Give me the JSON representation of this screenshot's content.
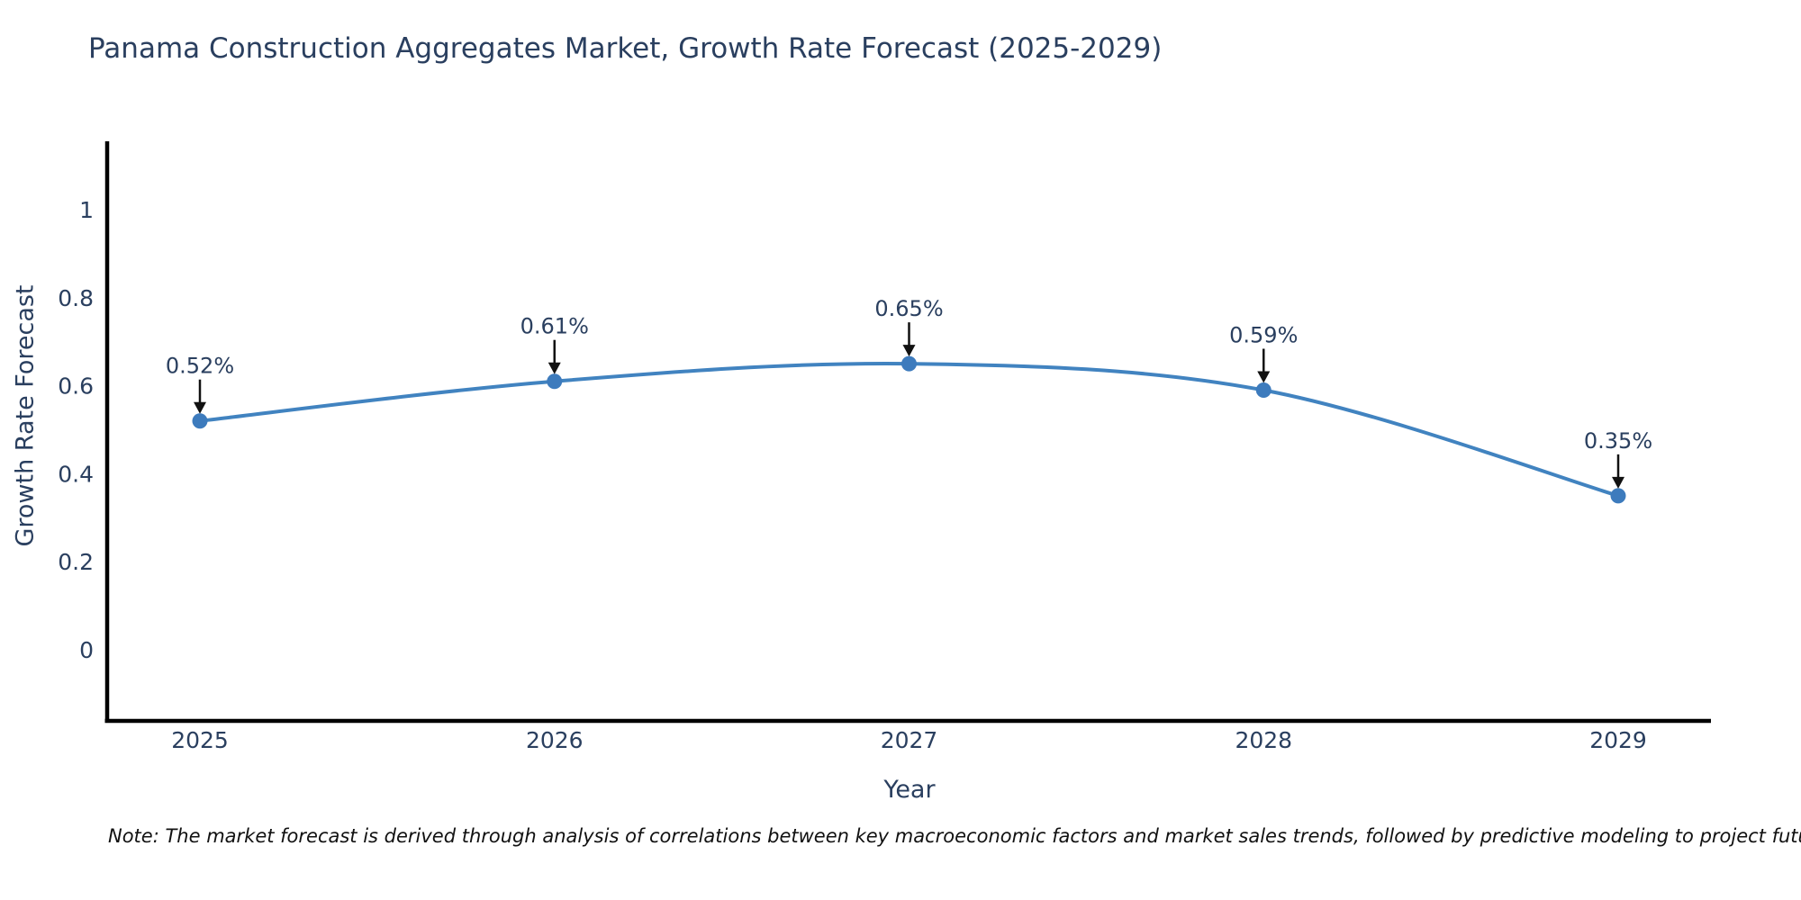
{
  "header": {
    "title": "Panama Construction Aggregates Market, Growth Rate Forecast (2025-2029)"
  },
  "footer": {
    "note": "Note: The market forecast is derived through analysis of correlations between key macroeconomic factors and market sales trends, followed by predictive modeling to project future sales"
  },
  "chart_data": {
    "type": "line",
    "line_shape": "spline",
    "title": "Panama Construction Aggregates Market, Growth Rate Forecast (2025-2029)",
    "xlabel": "Year",
    "ylabel": "Growth Rate Forecast",
    "x": [
      2025,
      2026,
      2027,
      2028,
      2029
    ],
    "values": [
      0.52,
      0.61,
      0.65,
      0.59,
      0.35
    ],
    "point_labels": [
      "0.52%",
      "0.61%",
      "0.65%",
      "0.59%",
      "0.35%"
    ],
    "unit": "%",
    "xtick_labels": [
      "2025",
      "2026",
      "2027",
      "2028",
      "2029"
    ],
    "yticks": [
      0,
      0.2,
      0.4,
      0.6,
      0.8,
      1
    ],
    "ytick_labels": [
      "0",
      "0.2",
      "0.4",
      "0.6",
      "0.8",
      "1"
    ],
    "ylim": [
      -0.16,
      1.15
    ],
    "xlim": [
      2024.74,
      2029.26
    ],
    "grid": false,
    "legend": "none",
    "colors": {
      "line": "#4183c0",
      "marker": "#3d7bbd",
      "axis": "#000000",
      "text": "#2a3f5f",
      "arrow": "#111111",
      "background": "#ffffff"
    }
  }
}
